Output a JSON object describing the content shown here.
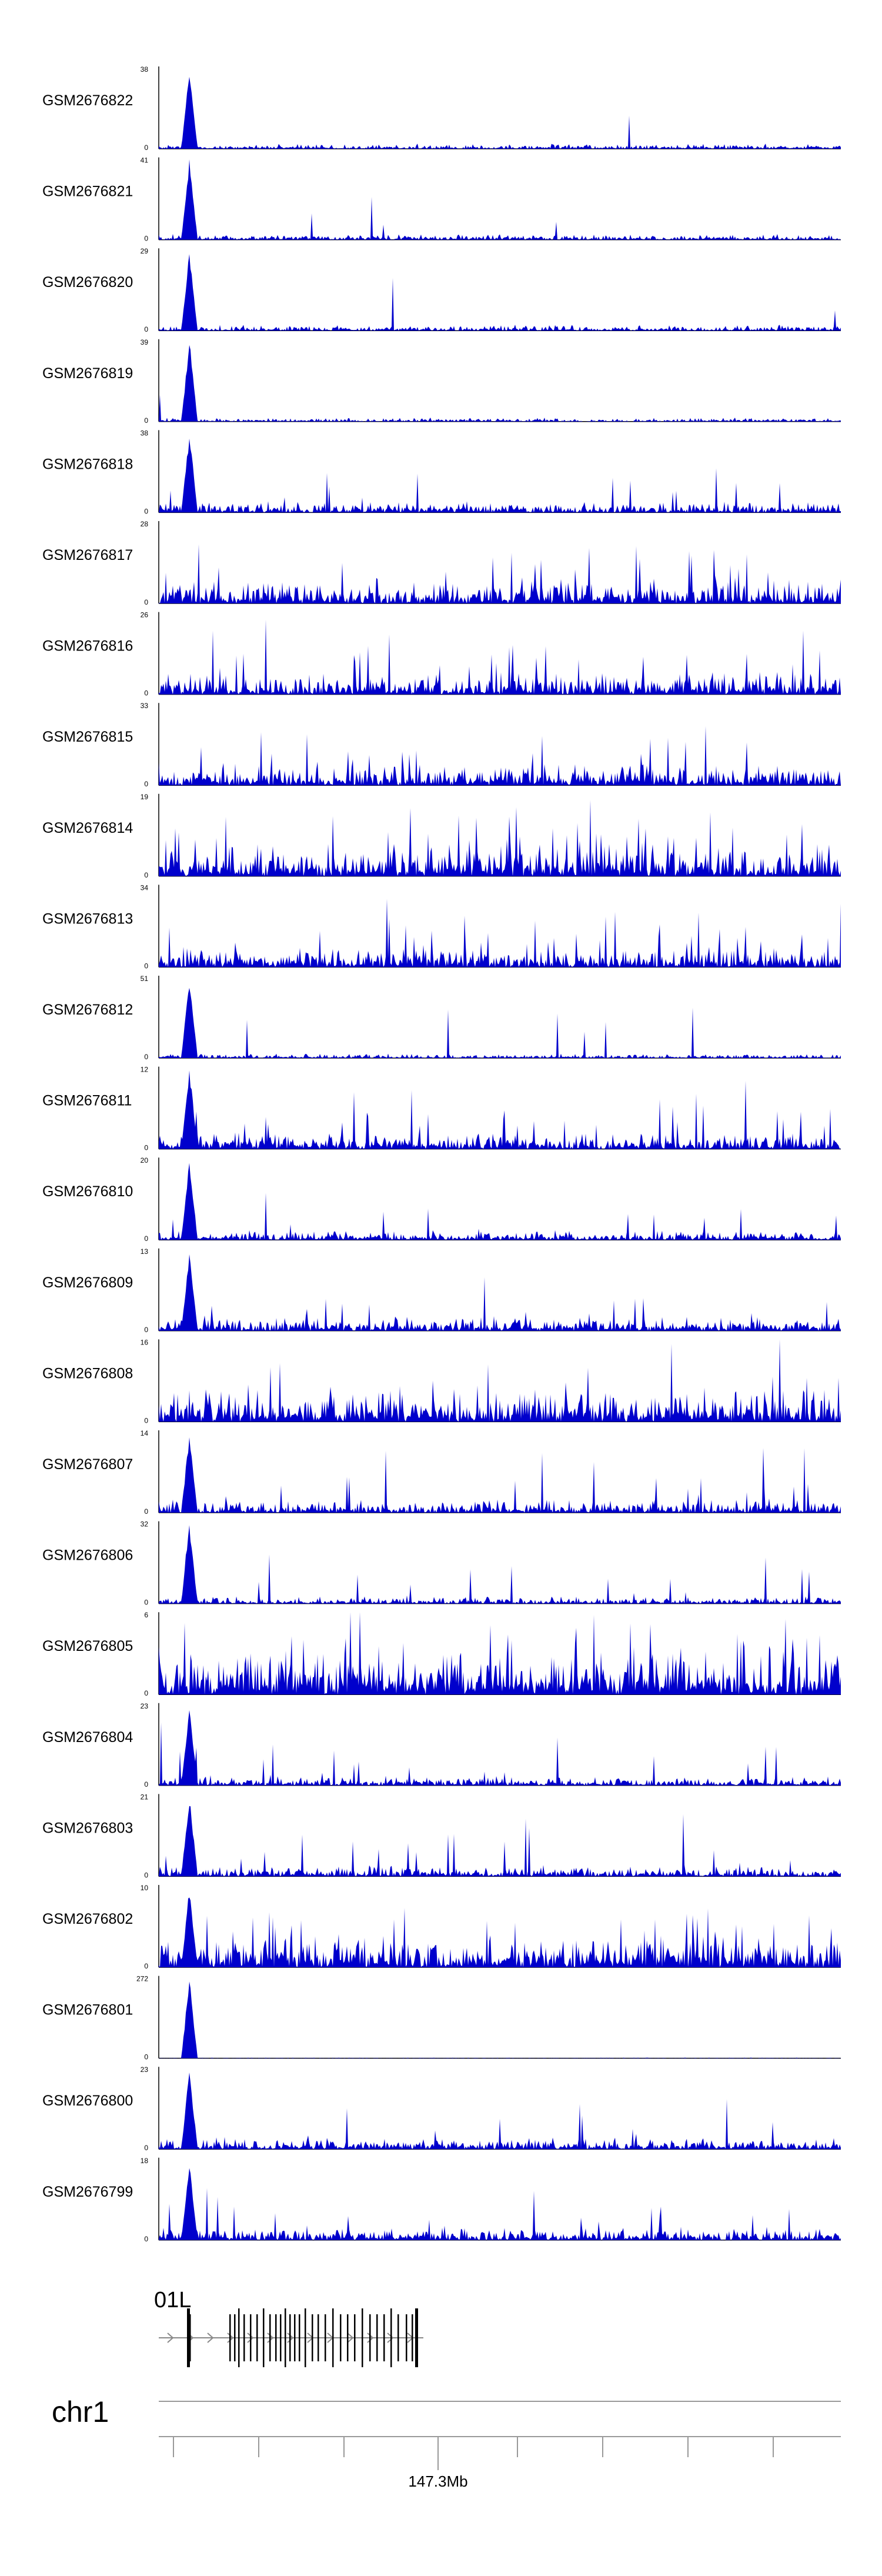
{
  "chart_data": {
    "type": "area",
    "color": "#0000cc",
    "chromosome": "chr1",
    "gene_label": "01L",
    "tick_label": "147.3Mb",
    "tracks": [
      {
        "name": "GSM2676822",
        "ymax": "38",
        "ymin": "0",
        "peak": 38,
        "baseline": 2.5,
        "activity": 0.05
      },
      {
        "name": "GSM2676821",
        "ymax": "41",
        "ymin": "0",
        "peak": 41,
        "baseline": 3.0,
        "activity": 0.07
      },
      {
        "name": "GSM2676820",
        "ymax": "29",
        "ymin": "0",
        "peak": 29,
        "baseline": 2.2,
        "activity": 0.05
      },
      {
        "name": "GSM2676819",
        "ymax": "39",
        "ymin": "0",
        "peak": 39,
        "baseline": 2.0,
        "activity": 0.03
      },
      {
        "name": "GSM2676818",
        "ymax": "38",
        "ymin": "0",
        "peak": 38,
        "baseline": 5.5,
        "activity": 0.3
      },
      {
        "name": "GSM2676817",
        "ymax": "28",
        "ymin": "0",
        "peak": 10,
        "baseline": 8.0,
        "activity": 0.85
      },
      {
        "name": "GSM2676816",
        "ymax": "26",
        "ymin": "0",
        "peak": 9,
        "baseline": 7.0,
        "activity": 0.8
      },
      {
        "name": "GSM2676815",
        "ymax": "33",
        "ymin": "0",
        "peak": 10,
        "baseline": 9.0,
        "activity": 0.85
      },
      {
        "name": "GSM2676814",
        "ymax": "19",
        "ymin": "0",
        "peak": 7,
        "baseline": 7.0,
        "activity": 1.0
      },
      {
        "name": "GSM2676813",
        "ymax": "34",
        "ymin": "0",
        "peak": 9,
        "baseline": 9.0,
        "activity": 0.75
      },
      {
        "name": "GSM2676812",
        "ymax": "51",
        "ymin": "0",
        "peak": 51,
        "baseline": 3.0,
        "activity": 0.06
      },
      {
        "name": "GSM2676811",
        "ymax": "12",
        "ymin": "0",
        "peak": 12,
        "baseline": 2.5,
        "activity": 0.4
      },
      {
        "name": "GSM2676810",
        "ymax": "20",
        "ymin": "0",
        "peak": 20,
        "baseline": 2.5,
        "activity": 0.22
      },
      {
        "name": "GSM2676809",
        "ymax": "13",
        "ymin": "0",
        "peak": 13,
        "baseline": 2.5,
        "activity": 0.35
      },
      {
        "name": "GSM2676808",
        "ymax": "16",
        "ymin": "0",
        "peak": 10,
        "baseline": 6.5,
        "activity": 0.8
      },
      {
        "name": "GSM2676807",
        "ymax": "14",
        "ymin": "0",
        "peak": 14,
        "baseline": 2.5,
        "activity": 0.3
      },
      {
        "name": "GSM2676806",
        "ymax": "32",
        "ymin": "0",
        "peak": 32,
        "baseline": 3.0,
        "activity": 0.2
      },
      {
        "name": "GSM2676805",
        "ymax": "6",
        "ymin": "0",
        "peak": 5,
        "baseline": 3.5,
        "activity": 1.0
      },
      {
        "name": "GSM2676804",
        "ymax": "23",
        "ymin": "0",
        "peak": 23,
        "baseline": 2.8,
        "activity": 0.25
      },
      {
        "name": "GSM2676803",
        "ymax": "21",
        "ymin": "0",
        "peak": 21,
        "baseline": 3.0,
        "activity": 0.3
      },
      {
        "name": "GSM2676802",
        "ymax": "10",
        "ymin": "0",
        "peak": 10,
        "baseline": 4.0,
        "activity": 0.65
      },
      {
        "name": "GSM2676801",
        "ymax": "272",
        "ymin": "0",
        "peak": 272,
        "baseline": 2.0,
        "activity": 0.01
      },
      {
        "name": "GSM2676800",
        "ymax": "23",
        "ymin": "0",
        "peak": 23,
        "baseline": 3.5,
        "activity": 0.3
      },
      {
        "name": "GSM2676799",
        "ymax": "18",
        "ymin": "0",
        "peak": 18,
        "baseline": 3.0,
        "activity": 0.35
      }
    ]
  }
}
